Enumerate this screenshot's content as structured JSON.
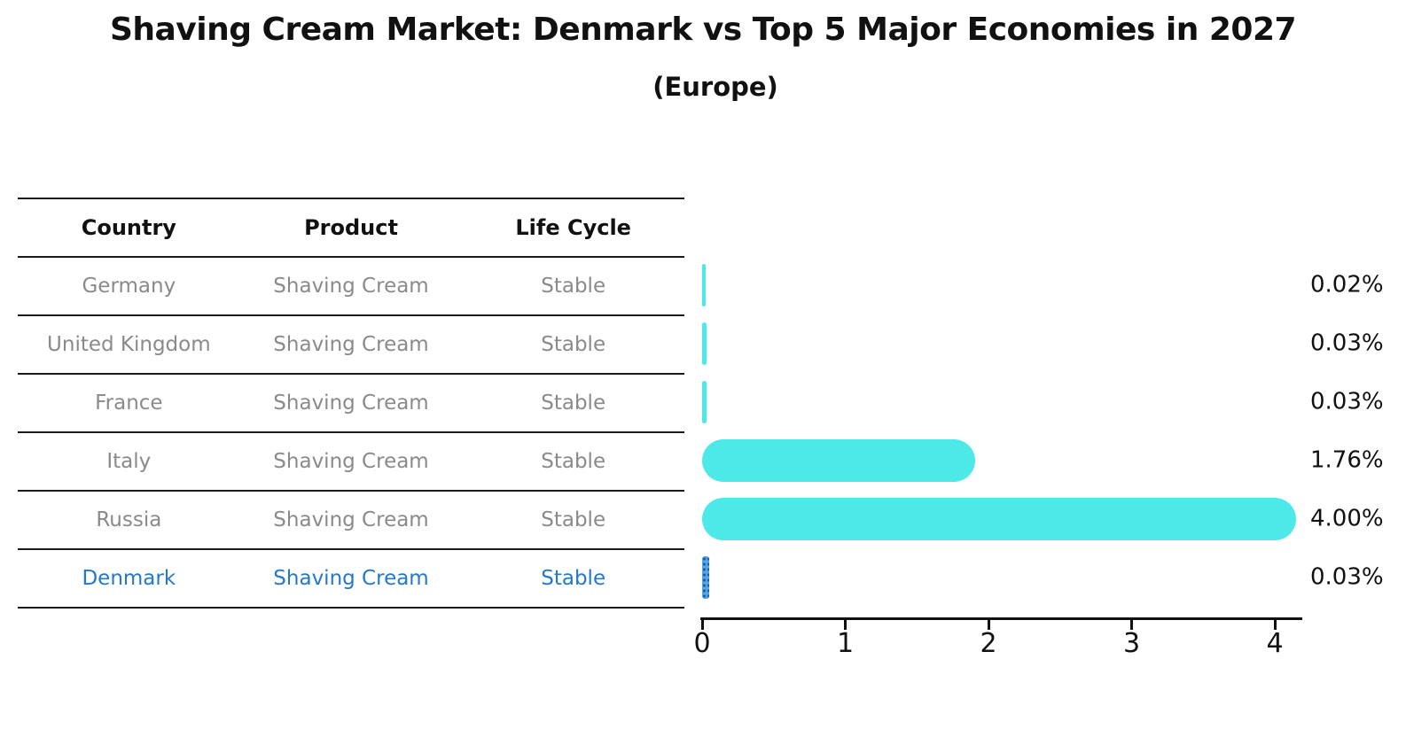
{
  "title": "Shaving Cream Market: Denmark vs Top 5 Major Economies in 2027",
  "subtitle": "(Europe)",
  "table": {
    "headers": [
      "Country",
      "Product",
      "Life Cycle"
    ],
    "rows": [
      {
        "country": "Germany",
        "product": "Shaving Cream",
        "life_cycle": "Stable",
        "highlight": false
      },
      {
        "country": "United Kingdom",
        "product": "Shaving Cream",
        "life_cycle": "Stable",
        "highlight": false
      },
      {
        "country": "France",
        "product": "Shaving Cream",
        "life_cycle": "Stable",
        "highlight": false
      },
      {
        "country": "Italy",
        "product": "Shaving Cream",
        "life_cycle": "Stable",
        "highlight": false
      },
      {
        "country": "Russia",
        "product": "Shaving Cream",
        "life_cycle": "Stable",
        "highlight": false
      },
      {
        "country": "Denmark",
        "product": "Shaving Cream",
        "life_cycle": "Stable",
        "highlight": true
      }
    ]
  },
  "chart_data": {
    "type": "bar",
    "orientation": "horizontal",
    "title": "Shaving Cream Market: Denmark vs Top 5 Major Economies in 2027",
    "subtitle": "(Europe)",
    "categories": [
      "Germany",
      "United Kingdom",
      "France",
      "Italy",
      "Russia",
      "Denmark"
    ],
    "values": [
      0.02,
      0.03,
      0.03,
      1.76,
      4.0,
      0.03
    ],
    "value_labels": [
      "0.02%",
      "0.03%",
      "0.03%",
      "1.76%",
      "4.00%",
      "0.03%"
    ],
    "xticks": [
      "0",
      "1",
      "2",
      "3",
      "4"
    ],
    "xlim": [
      0,
      4.2
    ],
    "grid": false,
    "legend": "none",
    "bar_color": "#4de9e9",
    "highlight_bar_color": "#2e82d6",
    "highlight_index": 5,
    "highlight_text_color": "#2478cc"
  }
}
